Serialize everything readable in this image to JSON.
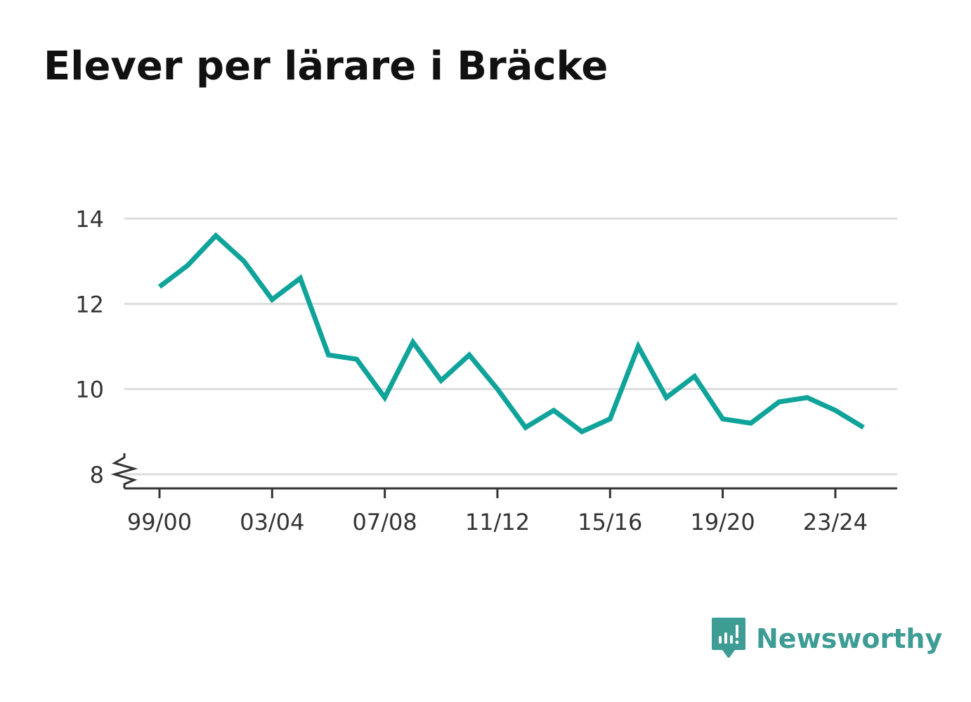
{
  "title": "Elever per lärare i Bräcke",
  "brand": {
    "name": "Newsworthy",
    "icon": "newsworthy-logo-icon",
    "color": "#3d9c94"
  },
  "chart_data": {
    "type": "line",
    "title": "Elever per lärare i Bräcke",
    "xlabel": "",
    "ylabel": "",
    "x": [
      "99/00",
      "00/01",
      "01/02",
      "02/03",
      "03/04",
      "04/05",
      "05/06",
      "06/07",
      "07/08",
      "08/09",
      "09/10",
      "10/11",
      "11/12",
      "12/13",
      "13/14",
      "14/15",
      "15/16",
      "16/17",
      "17/18",
      "18/19",
      "19/20",
      "20/21",
      "21/22",
      "22/23",
      "23/24",
      "24/25"
    ],
    "series": [
      {
        "values": [
          12.4,
          12.9,
          13.6,
          13.0,
          12.1,
          12.6,
          10.8,
          10.7,
          9.8,
          11.1,
          10.2,
          10.8,
          10.0,
          9.1,
          9.5,
          9.0,
          9.3,
          11.0,
          9.8,
          10.3,
          9.3,
          9.2,
          9.7,
          9.8,
          9.5,
          9.1
        ],
        "color": "#0fa39a"
      }
    ],
    "x_tick_labels": [
      "99/00",
      "03/04",
      "07/08",
      "11/12",
      "15/16",
      "19/20",
      "23/24"
    ],
    "y_ticks": [
      8,
      10,
      12,
      14
    ],
    "ylim": [
      8,
      14
    ],
    "axis_break": true,
    "grid": true,
    "colors": {
      "line": "#0fa39a",
      "grid": "#dddddd",
      "axis": "#333333"
    }
  }
}
